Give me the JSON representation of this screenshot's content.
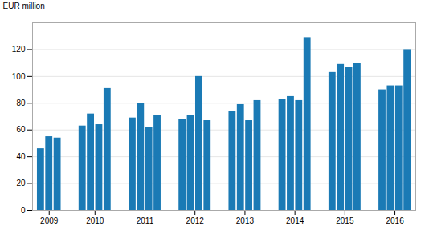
{
  "chart_data": {
    "type": "bar",
    "categories": [
      "2009",
      null,
      null,
      "2010",
      null,
      null,
      null,
      "2011",
      null,
      null,
      null,
      "2012",
      null,
      null,
      null,
      "2013",
      null,
      null,
      null,
      "2014",
      null,
      null,
      null,
      "2015",
      null,
      null,
      null,
      "2016",
      null,
      null,
      null
    ],
    "values": [
      46,
      55,
      54,
      63,
      72,
      64,
      91,
      69,
      80,
      62,
      71,
      68,
      71,
      100,
      67,
      74,
      79,
      67,
      82,
      83,
      85,
      82,
      129,
      103,
      109,
      107,
      110,
      90,
      93,
      93,
      120
    ],
    "color": "#1a7ab5",
    "ylabel": "EUR million",
    "ylim": [
      0,
      140
    ],
    "yticks": [
      0,
      20,
      40,
      60,
      80,
      100,
      120
    ],
    "grid": true
  }
}
